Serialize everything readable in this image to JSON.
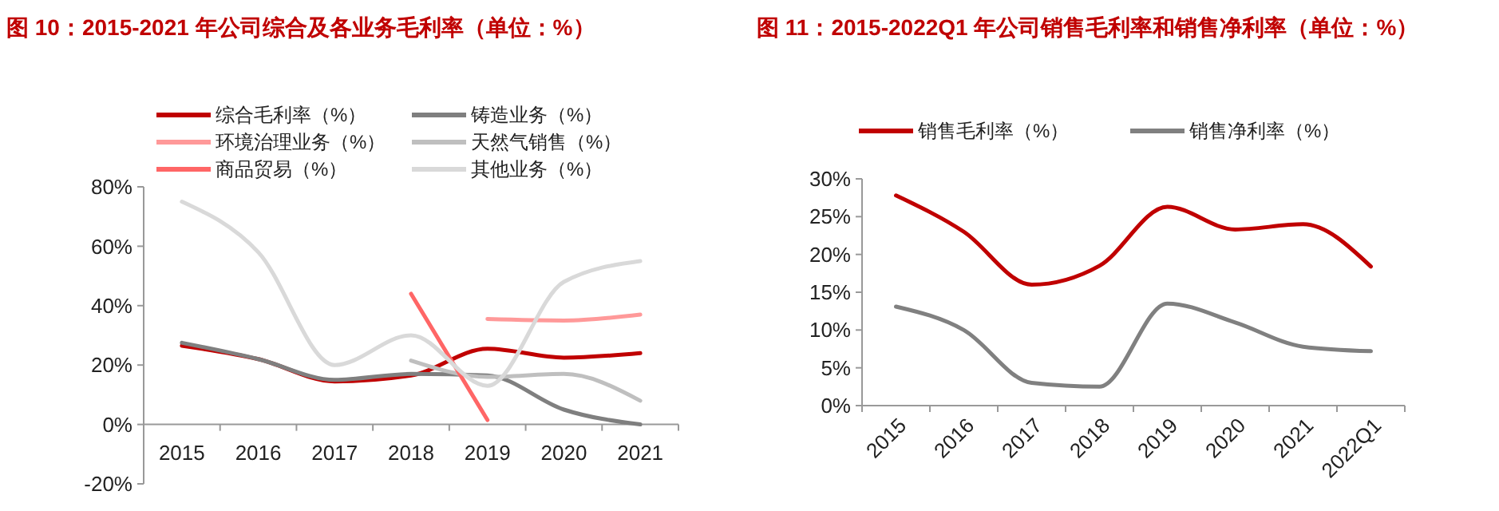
{
  "chart_data": [
    {
      "type": "line",
      "title": "图 10：2015-2021 年公司综合及各业务毛利率（单位：%）",
      "categories": [
        "2015",
        "2016",
        "2017",
        "2018",
        "2019",
        "2020",
        "2021"
      ],
      "ylim": [
        -20,
        80
      ],
      "yticks": [
        {
          "value": -20,
          "label": "-20%"
        },
        {
          "value": 0,
          "label": "0%"
        },
        {
          "value": 20,
          "label": "20%"
        },
        {
          "value": 40,
          "label": "40%"
        },
        {
          "value": 60,
          "label": "60%"
        },
        {
          "value": 80,
          "label": "80%"
        }
      ],
      "grid": false,
      "legend": "top",
      "marker": "none",
      "line_style": "solid",
      "series": [
        {
          "name": "综合毛利率（%）",
          "color": "#c00000",
          "values": [
            26.5,
            22,
            14.5,
            16.5,
            25.5,
            22.5,
            24
          ]
        },
        {
          "name": "铸造业务（%）",
          "color": "#7f7f7f",
          "values": [
            27.5,
            22,
            15,
            17,
            16.5,
            5,
            0
          ]
        },
        {
          "name": "环境治理业务（%）",
          "color": "#ff9999",
          "values": [
            null,
            null,
            null,
            null,
            35.5,
            35,
            37
          ]
        },
        {
          "name": "天然气销售（%）",
          "color": "#bfbfbf",
          "values": [
            null,
            null,
            null,
            21.5,
            16,
            17,
            8
          ]
        },
        {
          "name": "商品贸易（%）",
          "color": "#ff6666",
          "values": [
            null,
            null,
            null,
            44,
            1.5,
            null,
            null
          ]
        },
        {
          "name": "其他业务（%）",
          "color": "#d9d9d9",
          "values": [
            75,
            58,
            20,
            30,
            13,
            48,
            55
          ]
        }
      ]
    },
    {
      "type": "line",
      "title": "图 11：2015-2022Q1 年公司销售毛利率和销售净利率（单位：%）",
      "categories": [
        "2015",
        "2016",
        "2017",
        "2018",
        "2019",
        "2020",
        "2021",
        "2022Q1"
      ],
      "ylim": [
        0,
        30
      ],
      "yticks": [
        {
          "value": 0,
          "label": "0%"
        },
        {
          "value": 5,
          "label": "5%"
        },
        {
          "value": 10,
          "label": "10%"
        },
        {
          "value": 15,
          "label": "15%"
        },
        {
          "value": 20,
          "label": "20%"
        },
        {
          "value": 25,
          "label": "25%"
        },
        {
          "value": 30,
          "label": "30%"
        }
      ],
      "grid": false,
      "legend": "top",
      "marker": "none",
      "line_style": "solid",
      "series": [
        {
          "name": "销售毛利率（%）",
          "color": "#c00000",
          "values": [
            27.8,
            23,
            16,
            18.5,
            26.3,
            23.3,
            24,
            18.4
          ]
        },
        {
          "name": "销售净利率（%）",
          "color": "#808080",
          "values": [
            13.1,
            10,
            3,
            2.5,
            13.5,
            11,
            7.8,
            7.2
          ]
        }
      ]
    }
  ]
}
